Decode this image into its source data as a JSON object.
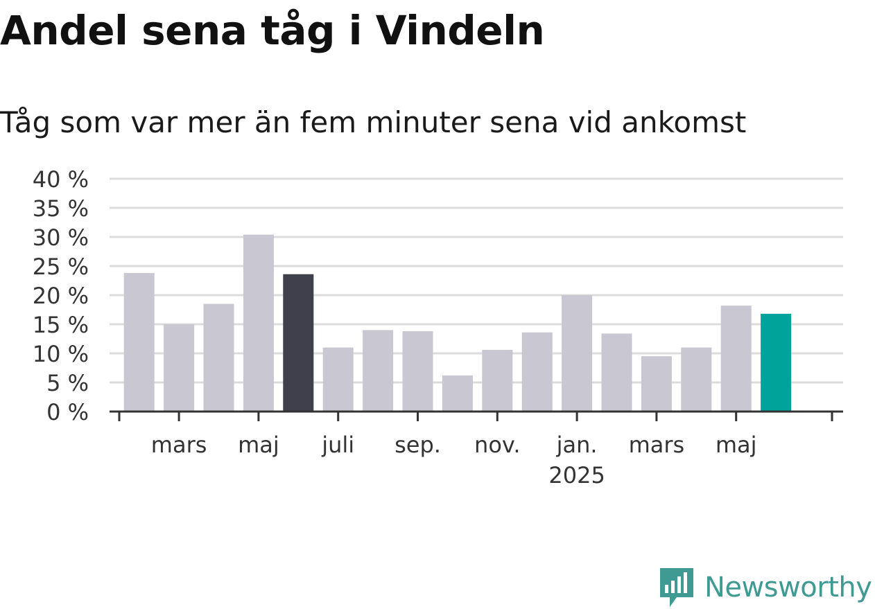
{
  "title": "Andel sena tåg i Vindeln",
  "subtitle": "Tåg som var mer än fem minuter sena vid ankomst",
  "brand": {
    "name": "Newsworthy",
    "icon": "newsworthy-chart-logo-icon"
  },
  "colors": {
    "bar_default": "#c8c7d2",
    "bar_highlight_dark": "#403f4c",
    "bar_highlight_accent": "#00a39a",
    "grid": "#dcdcdc",
    "axis": "#333333",
    "brand": "#3f9a94"
  },
  "chart_data": {
    "type": "bar",
    "categories": [
      "2024-02",
      "2024-03",
      "2024-04",
      "2024-05",
      "2024-06",
      "2024-07",
      "2024-08",
      "2024-09",
      "2024-10",
      "2024-11",
      "2024-12",
      "2025-01",
      "2025-02",
      "2025-03",
      "2025-04",
      "2025-05",
      "2025-06"
    ],
    "values": [
      23.8,
      15.0,
      18.5,
      30.4,
      23.6,
      11.0,
      14.0,
      13.8,
      6.2,
      10.6,
      13.6,
      20.0,
      13.4,
      9.5,
      11.0,
      18.2,
      16.8
    ],
    "highlight": {
      "dark": "2024-06",
      "accent": "2025-06"
    },
    "ylim": [
      0,
      40
    ],
    "yticks": [
      0,
      5,
      10,
      15,
      20,
      25,
      30,
      35,
      40
    ],
    "ytick_labels": [
      "0 %",
      "5 %",
      "10 %",
      "15 %",
      "20 %",
      "25 %",
      "30 %",
      "35 %",
      "40 %"
    ],
    "xtick_labels": [
      {
        "at": "2024-03",
        "label": "mars",
        "sub": ""
      },
      {
        "at": "2024-05",
        "label": "maj",
        "sub": ""
      },
      {
        "at": "2024-07",
        "label": "juli",
        "sub": ""
      },
      {
        "at": "2024-09",
        "label": "sep.",
        "sub": ""
      },
      {
        "at": "2024-11",
        "label": "nov.",
        "sub": ""
      },
      {
        "at": "2025-01",
        "label": "jan.",
        "sub": "2025"
      },
      {
        "at": "2025-03",
        "label": "mars",
        "sub": ""
      },
      {
        "at": "2025-05",
        "label": "maj",
        "sub": ""
      }
    ],
    "xlabel": "",
    "ylabel": "",
    "grid": true
  }
}
